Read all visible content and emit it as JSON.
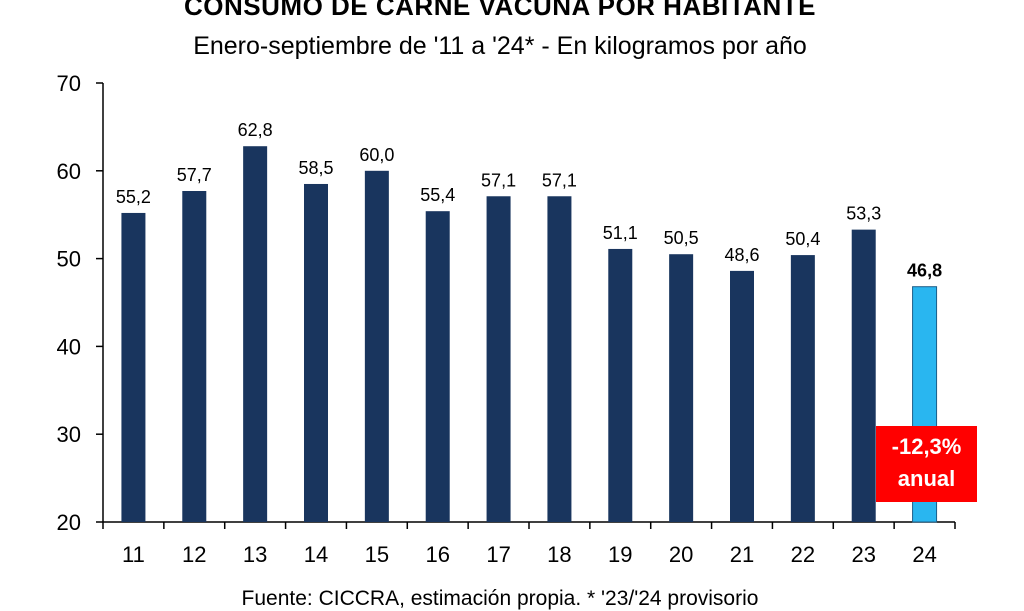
{
  "title": "CONSUMO DE CARNE VACUNA POR HABITANTE",
  "subtitle": "Enero-septiembre de '11 a '24* - En kilogramos por año",
  "source": "Fuente: CICCRA, estimación propia. * '23/'24 provisorio",
  "annotation": {
    "line1": "-12,3%",
    "line2": "anual"
  },
  "colors": {
    "bar": "#19355e",
    "highlight_bar": "#29b6f0",
    "annotation_bg": "#ff0000"
  },
  "chart_data": {
    "type": "bar",
    "categories": [
      "11",
      "12",
      "13",
      "14",
      "15",
      "16",
      "17",
      "18",
      "19",
      "20",
      "21",
      "22",
      "23",
      "24"
    ],
    "values": [
      55.2,
      57.7,
      62.8,
      58.5,
      60.0,
      55.4,
      57.1,
      57.1,
      51.1,
      50.5,
      48.6,
      50.4,
      53.3,
      46.8
    ],
    "value_labels": [
      "55,2",
      "57,7",
      "62,8",
      "58,5",
      "60,0",
      "55,4",
      "57,1",
      "57,1",
      "51,1",
      "50,5",
      "48,6",
      "50,4",
      "53,3",
      "46,8"
    ],
    "highlight_index": 13,
    "ylim": [
      20,
      70
    ],
    "yticks": [
      20,
      30,
      40,
      50,
      60,
      70
    ],
    "grid": false,
    "legend": "none"
  }
}
